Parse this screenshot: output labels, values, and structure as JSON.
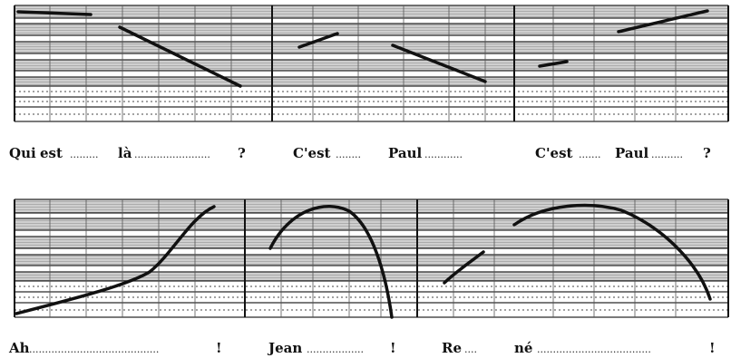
{
  "row1": {
    "panel1": [
      "Qui",
      "est",
      "là",
      "?"
    ],
    "panel2": [
      "C'est",
      "Paul"
    ],
    "panel3": [
      "C'est",
      "Paul",
      "?"
    ]
  },
  "row2": {
    "panel1": [
      "Ah",
      "!"
    ],
    "panel2": [
      "Jean",
      "!"
    ],
    "panel3": [
      "Re",
      "né",
      "!"
    ]
  },
  "colors": {
    "ink": "#111111",
    "grid": "#2a2a2a",
    "band": "#bdbdbd"
  }
}
